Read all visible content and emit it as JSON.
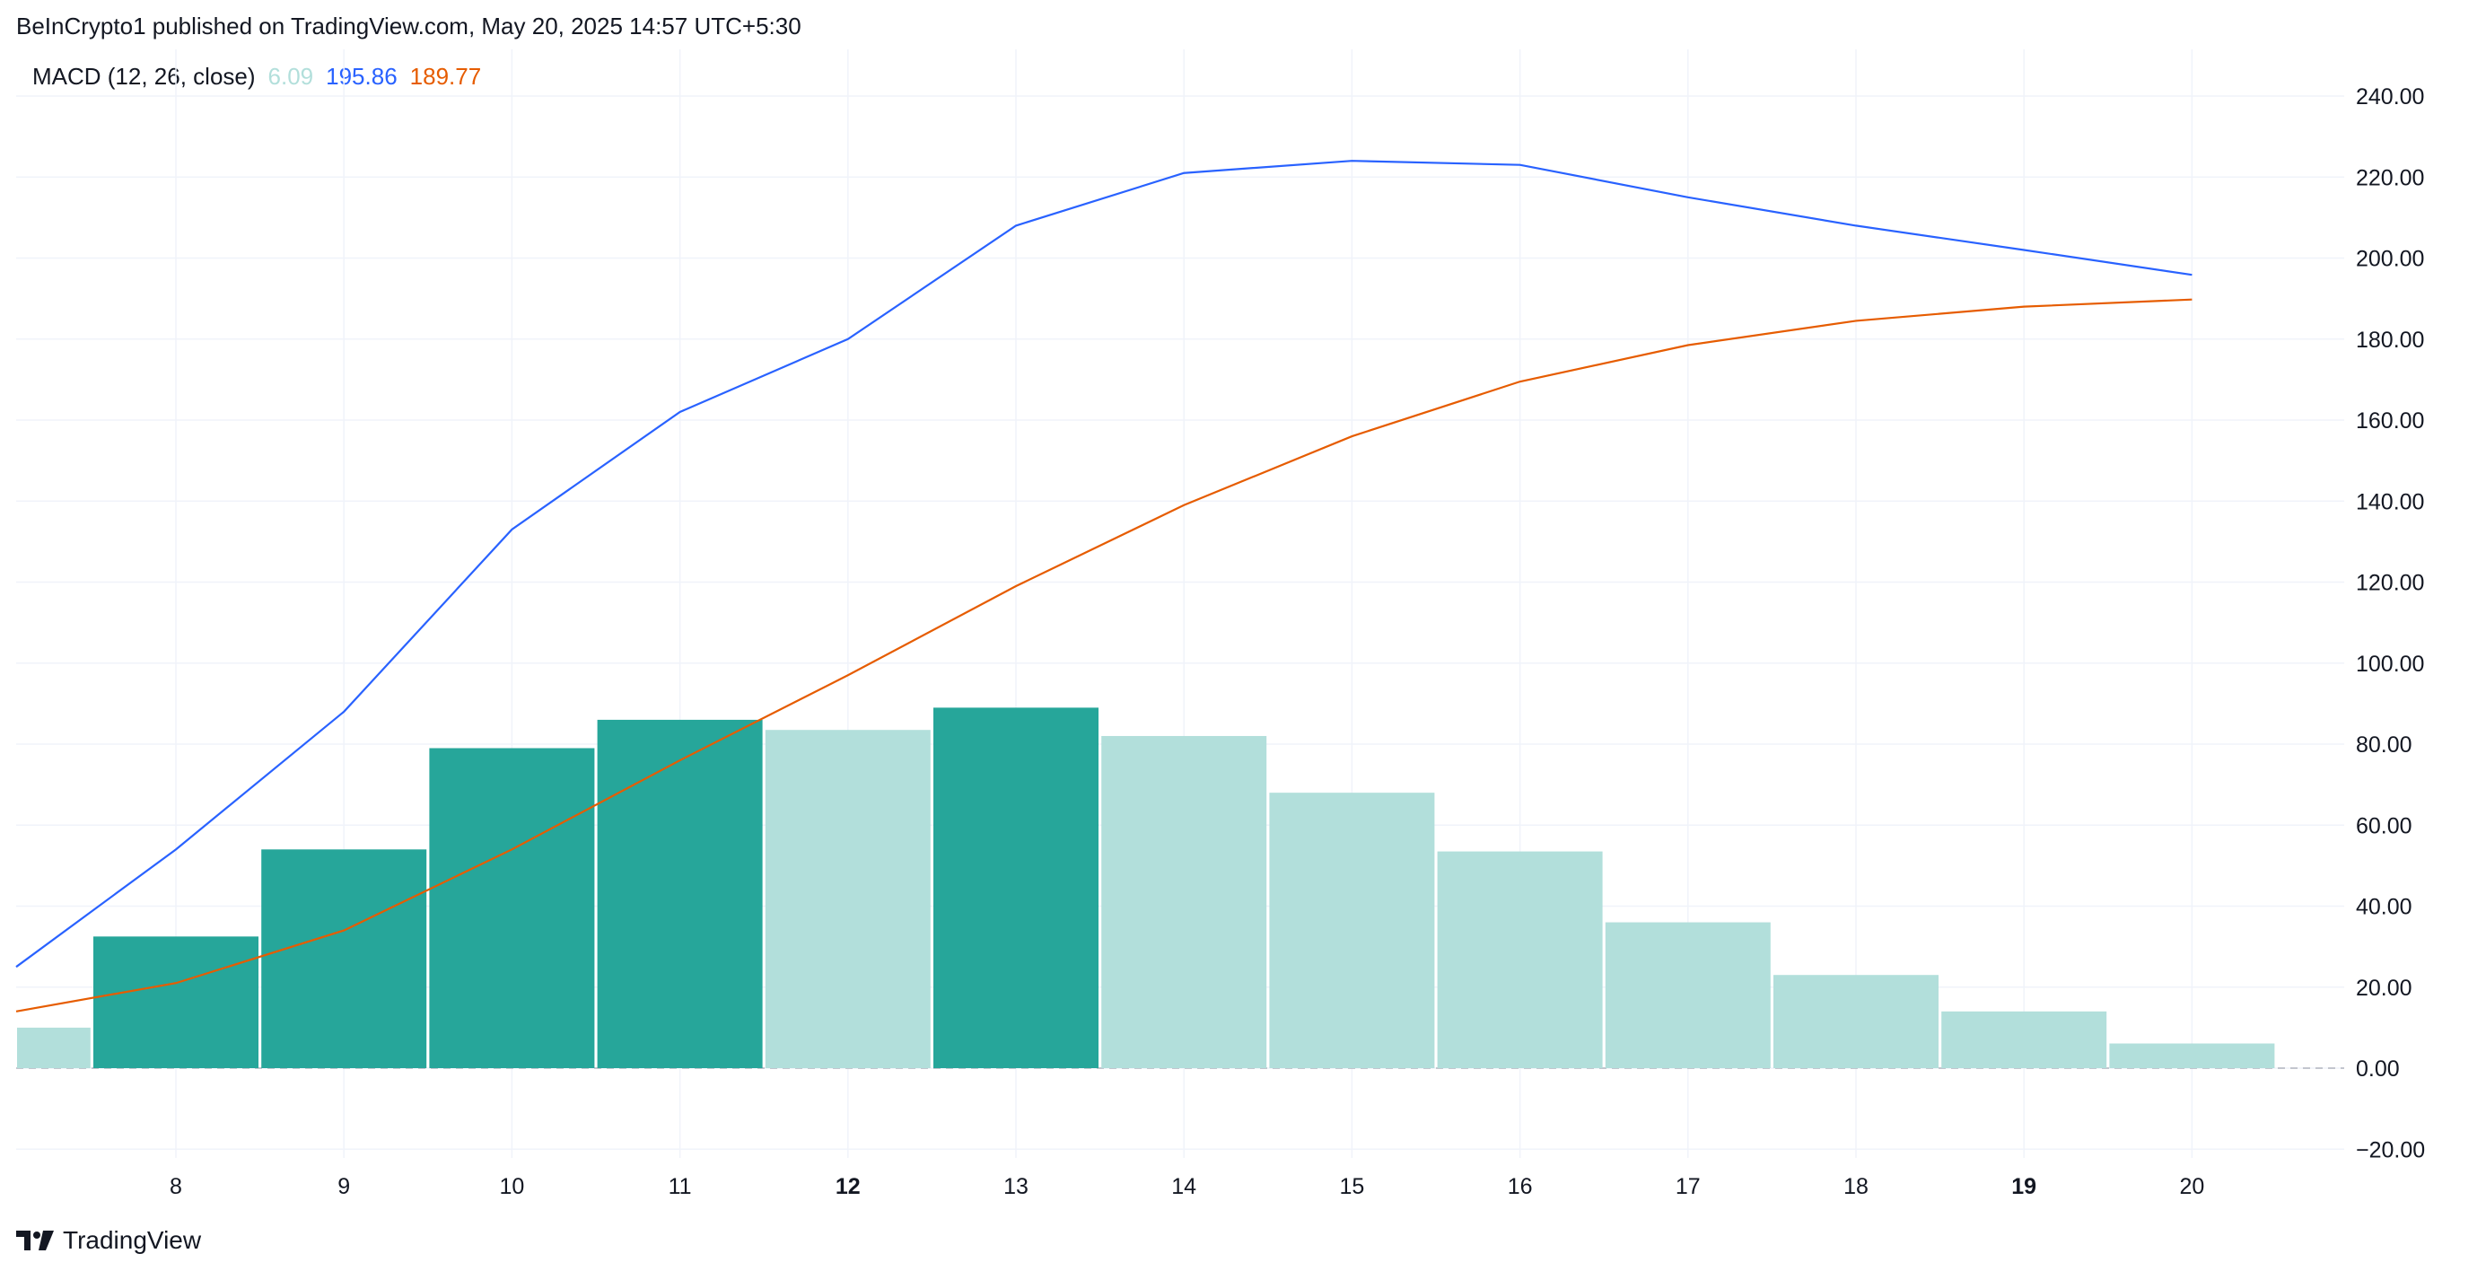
{
  "header": {
    "attribution": "BeInCrypto1 published on TradingView.com, May 20, 2025 14:57 UTC+5:30"
  },
  "legend": {
    "name": "MACD (12, 26, close)",
    "histogram_value": "6.09",
    "macd_value": "195.86",
    "signal_value": "189.77"
  },
  "footer": {
    "brand": "TradingView"
  },
  "colors": {
    "histogram_strong": "#26a69a",
    "histogram_weak": "#b2dfdb",
    "macd": "#2962ff",
    "signal": "#e65c00",
    "grid": "#f0f3fa",
    "zero_line": "#b2b5be"
  },
  "chart_data": {
    "type": "bar",
    "title": "",
    "x_labels": [
      "8",
      "9",
      "10",
      "11",
      "12",
      "13",
      "14",
      "15",
      "16",
      "17",
      "18",
      "19",
      "20"
    ],
    "x_labels_bold": [
      "12",
      "19"
    ],
    "ylim": [
      -25,
      240
    ],
    "y_ticks": [
      "240.00",
      "220.00",
      "200.00",
      "180.00",
      "160.00",
      "140.00",
      "120.00",
      "100.00",
      "80.00",
      "60.00",
      "40.00",
      "20.00",
      "0.00",
      "−20.00"
    ],
    "y_tick_values": [
      240,
      220,
      200,
      180,
      160,
      140,
      120,
      100,
      80,
      60,
      40,
      20,
      0,
      -20
    ],
    "x": [
      7,
      8,
      9,
      10,
      11,
      12,
      13,
      14,
      15,
      16,
      17,
      18,
      19,
      20
    ],
    "series": [
      {
        "type": "histogram",
        "values": [
          10,
          32.5,
          54,
          79,
          86,
          83.5,
          89,
          82,
          68,
          53.5,
          36,
          23,
          14,
          6.09
        ],
        "strong": [
          false,
          true,
          true,
          true,
          true,
          false,
          true,
          false,
          false,
          false,
          false,
          false,
          false,
          false
        ]
      },
      {
        "type": "line",
        "color_key": "macd",
        "values": [
          25,
          54,
          88,
          133,
          162,
          180,
          208,
          221,
          224,
          223,
          215,
          208,
          202,
          195.86
        ]
      },
      {
        "type": "line",
        "color_key": "signal",
        "values": [
          14,
          21,
          34,
          54,
          76,
          97,
          119,
          139,
          156,
          169.5,
          178.5,
          184.5,
          188,
          189.77
        ]
      }
    ],
    "grid": true
  }
}
